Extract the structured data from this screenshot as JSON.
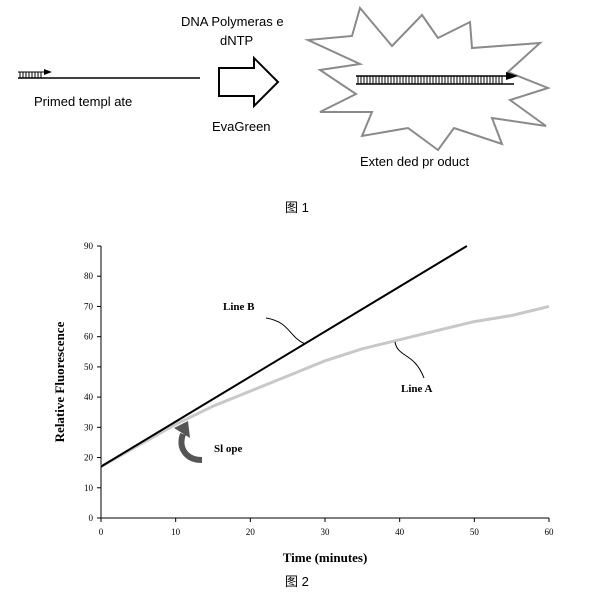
{
  "figure1": {
    "primed_template_label": "Primed templ ate",
    "enzyme_label_line1": "DNA Polymeras e",
    "enzyme_label_line2": "dNTP",
    "dye_label": "EvaGreen",
    "product_label": "Exten ded pr oduct",
    "caption": "图 1"
  },
  "figure2": {
    "caption": "图 2",
    "line_b_label": "Line B",
    "line_a_label": "Line A",
    "slope_label": "Sl ope"
  },
  "chart_data": {
    "type": "line",
    "xlabel": "Time (minutes)",
    "ylabel": "Relative Fluorescence",
    "xlim": [
      0,
      60
    ],
    "ylim": [
      0,
      90
    ],
    "xticks": [
      0,
      10,
      20,
      30,
      40,
      50,
      60
    ],
    "yticks": [
      0,
      10,
      20,
      30,
      40,
      50,
      60,
      70,
      80,
      90
    ],
    "grid": false,
    "series": [
      {
        "name": "Line A",
        "color": "#c8c8c8",
        "x": [
          0,
          5,
          10,
          15,
          20,
          25,
          30,
          35,
          40,
          45,
          50,
          55,
          60
        ],
        "y": [
          17,
          24,
          31,
          37,
          42,
          47,
          52,
          56,
          59,
          62,
          65,
          67,
          70
        ]
      },
      {
        "name": "Line B",
        "color": "#000000",
        "x": [
          0,
          49
        ],
        "y": [
          17,
          90
        ]
      }
    ]
  }
}
